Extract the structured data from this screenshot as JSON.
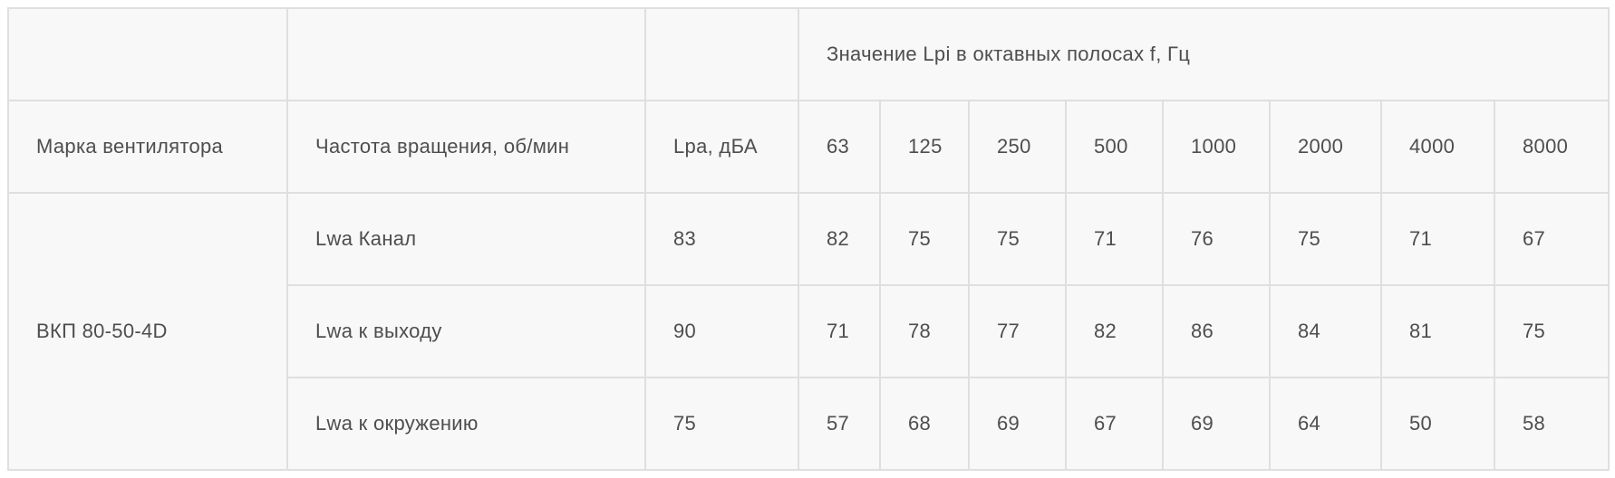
{
  "table": {
    "octave_header": "Значение Lpi в октавных полосах f, Гц",
    "column_headers": {
      "fan_model": "Марка вентилятора",
      "rotation_speed": "Частота вращения, об/мин",
      "lpa": "Lpa, дБА",
      "frequencies": [
        "63",
        "125",
        "250",
        "500",
        "1000",
        "2000",
        "4000",
        "8000"
      ]
    },
    "fan_model": "ВКП 80-50-4D",
    "rows": [
      {
        "label": "Lwa Канал",
        "lpa": "83",
        "values": [
          "82",
          "75",
          "75",
          "71",
          "76",
          "75",
          "71",
          "67"
        ]
      },
      {
        "label": "Lwa к выходу",
        "lpa": "90",
        "values": [
          "71",
          "78",
          "77",
          "82",
          "86",
          "84",
          "81",
          "75"
        ]
      },
      {
        "label": "Lwa к окружению",
        "lpa": "75",
        "values": [
          "57",
          "68",
          "69",
          "67",
          "69",
          "64",
          "50",
          "58"
        ]
      }
    ],
    "colors": {
      "cell_background": "#f8f8f8",
      "border": "#dfdfdf",
      "text": "#4e4e4e",
      "page_background": "#ffffff"
    }
  }
}
